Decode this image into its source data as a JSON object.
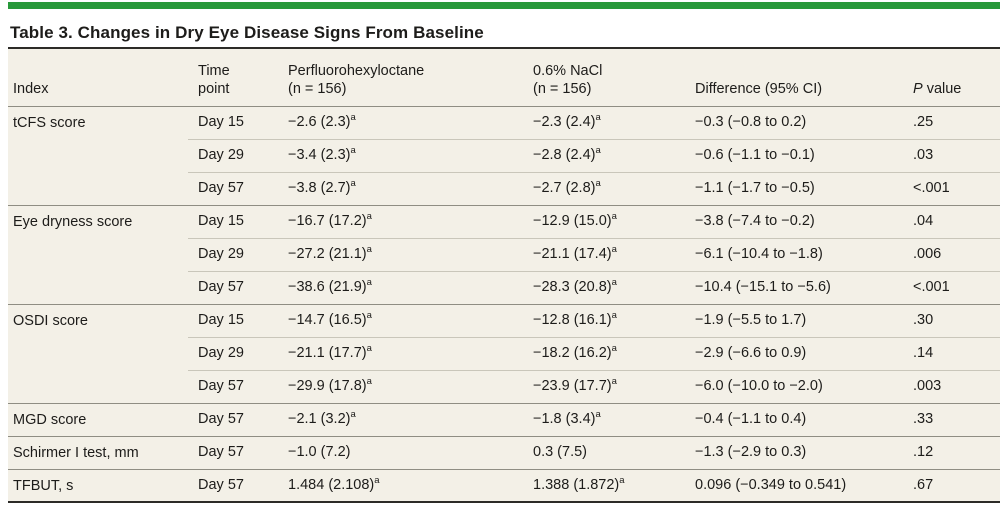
{
  "title": "Table 3. Changes in Dry Eye Disease Signs From Baseline",
  "accent_color": "#28993a",
  "table_background": "#f3f0e7",
  "table": {
    "columns": {
      "index": "Index",
      "time": {
        "line1": "Time",
        "line2": "point"
      },
      "drug": {
        "line1": "Perfluorohexyloctane",
        "line2": "(n = 156)"
      },
      "nacl": {
        "line1": "0.6% NaCl",
        "line2": "(n = 156)"
      },
      "difference": "Difference (95% CI)",
      "p": {
        "italic": "P",
        "rest": " value"
      }
    },
    "groups": [
      {
        "index": "tCFS score",
        "rows": [
          {
            "time": "Day 15",
            "drug": "−2.6 (2.3)",
            "drug_sup": "a",
            "nacl": "−2.3 (2.4)",
            "nacl_sup": "a",
            "diff": "−0.3 (−0.8 to 0.2)",
            "p": ".25"
          },
          {
            "time": "Day 29",
            "drug": "−3.4 (2.3)",
            "drug_sup": "a",
            "nacl": "−2.8 (2.4)",
            "nacl_sup": "a",
            "diff": "−0.6 (−1.1 to −0.1)",
            "p": ".03"
          },
          {
            "time": "Day 57",
            "drug": "−3.8 (2.7)",
            "drug_sup": "a",
            "nacl": "−2.7 (2.8)",
            "nacl_sup": "a",
            "diff": "−1.1 (−1.7 to −0.5)",
            "p": "<.001"
          }
        ]
      },
      {
        "index": "Eye dryness score",
        "rows": [
          {
            "time": "Day 15",
            "drug": "−16.7 (17.2)",
            "drug_sup": "a",
            "nacl": "−12.9 (15.0)",
            "nacl_sup": "a",
            "diff": "−3.8 (−7.4 to −0.2)",
            "p": ".04"
          },
          {
            "time": "Day 29",
            "drug": "−27.2 (21.1)",
            "drug_sup": "a",
            "nacl": "−21.1 (17.4)",
            "nacl_sup": "a",
            "diff": "−6.1 (−10.4 to −1.8)",
            "p": ".006"
          },
          {
            "time": "Day 57",
            "drug": "−38.6 (21.9)",
            "drug_sup": "a",
            "nacl": "−28.3 (20.8)",
            "nacl_sup": "a",
            "diff": "−10.4 (−15.1 to −5.6)",
            "p": "<.001"
          }
        ]
      },
      {
        "index": "OSDI score",
        "rows": [
          {
            "time": "Day 15",
            "drug": "−14.7 (16.5)",
            "drug_sup": "a",
            "nacl": "−12.8 (16.1)",
            "nacl_sup": "a",
            "diff": "−1.9 (−5.5 to 1.7)",
            "p": ".30"
          },
          {
            "time": "Day 29",
            "drug": "−21.1 (17.7)",
            "drug_sup": "a",
            "nacl": "−18.2 (16.2)",
            "nacl_sup": "a",
            "diff": "−2.9 (−6.6 to 0.9)",
            "p": ".14"
          },
          {
            "time": "Day 57",
            "drug": "−29.9 (17.8)",
            "drug_sup": "a",
            "nacl": "−23.9 (17.7)",
            "nacl_sup": "a",
            "diff": "−6.0 (−10.0 to −2.0)",
            "p": ".003"
          }
        ]
      },
      {
        "index": "MGD score",
        "rows": [
          {
            "time": "Day 57",
            "drug": "−2.1 (3.2)",
            "drug_sup": "a",
            "nacl": "−1.8 (3.4)",
            "nacl_sup": "a",
            "diff": "−0.4 (−1.1 to 0.4)",
            "p": ".33"
          }
        ]
      },
      {
        "index": "Schirmer I test, mm",
        "rows": [
          {
            "time": "Day 57",
            "drug": "−1.0 (7.2)",
            "drug_sup": "",
            "nacl": "0.3 (7.5)",
            "nacl_sup": "",
            "diff": "−1.3 (−2.9 to 0.3)",
            "p": ".12"
          }
        ]
      },
      {
        "index": "TFBUT, s",
        "rows": [
          {
            "time": "Day 57",
            "drug": "1.484 (2.108)",
            "drug_sup": "a",
            "nacl": "1.388 (1.872)",
            "nacl_sup": "a",
            "diff": "0.096 (−0.349 to 0.541)",
            "p": ".67"
          }
        ]
      }
    ]
  }
}
